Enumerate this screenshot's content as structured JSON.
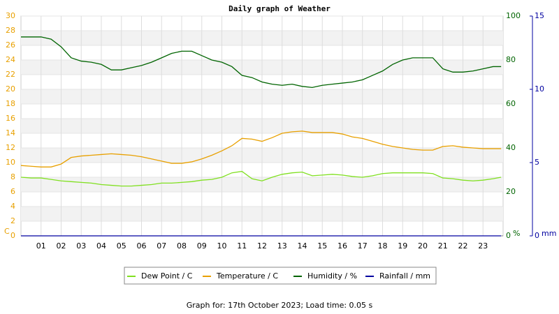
{
  "chart_data": {
    "type": "line",
    "title": "Daily graph of Weather",
    "footer": "Graph for: 17th October 2023; Load time: 0.05 s",
    "ylabel": "C",
    "y2label": "%",
    "y3label": "mm",
    "x": [
      0,
      0.5,
      1,
      1.5,
      2,
      2.5,
      3,
      3.5,
      4,
      4.5,
      5,
      5.5,
      6,
      6.5,
      7,
      7.5,
      8,
      8.5,
      9,
      9.5,
      10,
      10.5,
      11,
      11.5,
      12,
      12.5,
      13,
      13.5,
      14,
      14.5,
      15,
      15.5,
      16,
      16.5,
      17,
      17.5,
      18,
      18.5,
      19,
      19.5,
      20,
      20.5,
      21,
      21.5,
      22,
      22.5,
      23,
      23.5,
      23.9
    ],
    "series": [
      {
        "name": "Dew Point / C",
        "color": "#80e020",
        "axis": "y",
        "values": [
          8.0,
          7.9,
          7.9,
          7.7,
          7.5,
          7.4,
          7.3,
          7.2,
          7.0,
          6.9,
          6.8,
          6.8,
          6.9,
          7.0,
          7.2,
          7.2,
          7.3,
          7.4,
          7.6,
          7.7,
          8.0,
          8.6,
          8.8,
          7.8,
          7.5,
          8.0,
          8.4,
          8.6,
          8.7,
          8.2,
          8.3,
          8.4,
          8.3,
          8.1,
          8.0,
          8.2,
          8.5,
          8.6,
          8.6,
          8.6,
          8.6,
          8.5,
          7.9,
          7.8,
          7.6,
          7.5,
          7.6,
          7.8,
          8.0
        ]
      },
      {
        "name": "Temperature / C",
        "color": "#e8a000",
        "axis": "y",
        "values": [
          9.6,
          9.5,
          9.4,
          9.4,
          9.8,
          10.7,
          10.9,
          11.0,
          11.1,
          11.2,
          11.1,
          11.0,
          10.8,
          10.5,
          10.2,
          9.9,
          9.9,
          10.1,
          10.5,
          11.0,
          11.6,
          12.3,
          13.3,
          13.2,
          12.9,
          13.4,
          14.0,
          14.2,
          14.3,
          14.1,
          14.1,
          14.1,
          13.9,
          13.5,
          13.3,
          12.9,
          12.5,
          12.2,
          12.0,
          11.8,
          11.7,
          11.7,
          12.2,
          12.3,
          12.1,
          12.0,
          11.9,
          11.9,
          11.9
        ]
      },
      {
        "name": "Humidity / %",
        "color": "#006400",
        "axis": "y2",
        "values": [
          90.5,
          90.5,
          90.5,
          89.5,
          86,
          81,
          79.5,
          79,
          78,
          75.5,
          75.5,
          76.5,
          77.5,
          79,
          81,
          83,
          84,
          84,
          82,
          80,
          79,
          77,
          73,
          72,
          70,
          69,
          68.5,
          69,
          68,
          67.5,
          68.5,
          69,
          69.5,
          70,
          71,
          73,
          75,
          78,
          80,
          81,
          81,
          81,
          76,
          74.5,
          74.5,
          75,
          76,
          77,
          77
        ]
      },
      {
        "name": "Rainfall / mm",
        "color": "#0000a0",
        "axis": "y3",
        "values": [
          0,
          0,
          0,
          0,
          0,
          0,
          0,
          0,
          0,
          0,
          0,
          0,
          0,
          0,
          0,
          0,
          0,
          0,
          0,
          0,
          0,
          0,
          0,
          0,
          0,
          0,
          0,
          0,
          0,
          0,
          0,
          0,
          0,
          0,
          0,
          0,
          0,
          0,
          0,
          0,
          0,
          0,
          0,
          0,
          0,
          0,
          0,
          0,
          0
        ]
      }
    ],
    "xlim": [
      0,
      24
    ],
    "xticks": [
      {
        "value": 1,
        "label": "01"
      },
      {
        "value": 2,
        "label": "02"
      },
      {
        "value": 3,
        "label": "03"
      },
      {
        "value": 4,
        "label": "04"
      },
      {
        "value": 5,
        "label": "05"
      },
      {
        "value": 6,
        "label": "06"
      },
      {
        "value": 7,
        "label": "07"
      },
      {
        "value": 8,
        "label": "08"
      },
      {
        "value": 9,
        "label": "09"
      },
      10,
      11,
      12,
      13,
      14,
      15,
      16,
      17,
      18,
      19,
      20,
      21,
      22,
      23
    ],
    "ylim": [
      0,
      30
    ],
    "yticks": [
      0,
      2,
      4,
      6,
      8,
      10,
      12,
      14,
      16,
      18,
      20,
      22,
      24,
      26,
      28,
      30
    ],
    "y2lim": [
      0,
      100
    ],
    "y2ticks": [
      0,
      20,
      40,
      60,
      80,
      100
    ],
    "y3lim": [
      0,
      15
    ],
    "y3ticks": [
      0,
      5,
      10,
      15
    ],
    "grid": true
  }
}
